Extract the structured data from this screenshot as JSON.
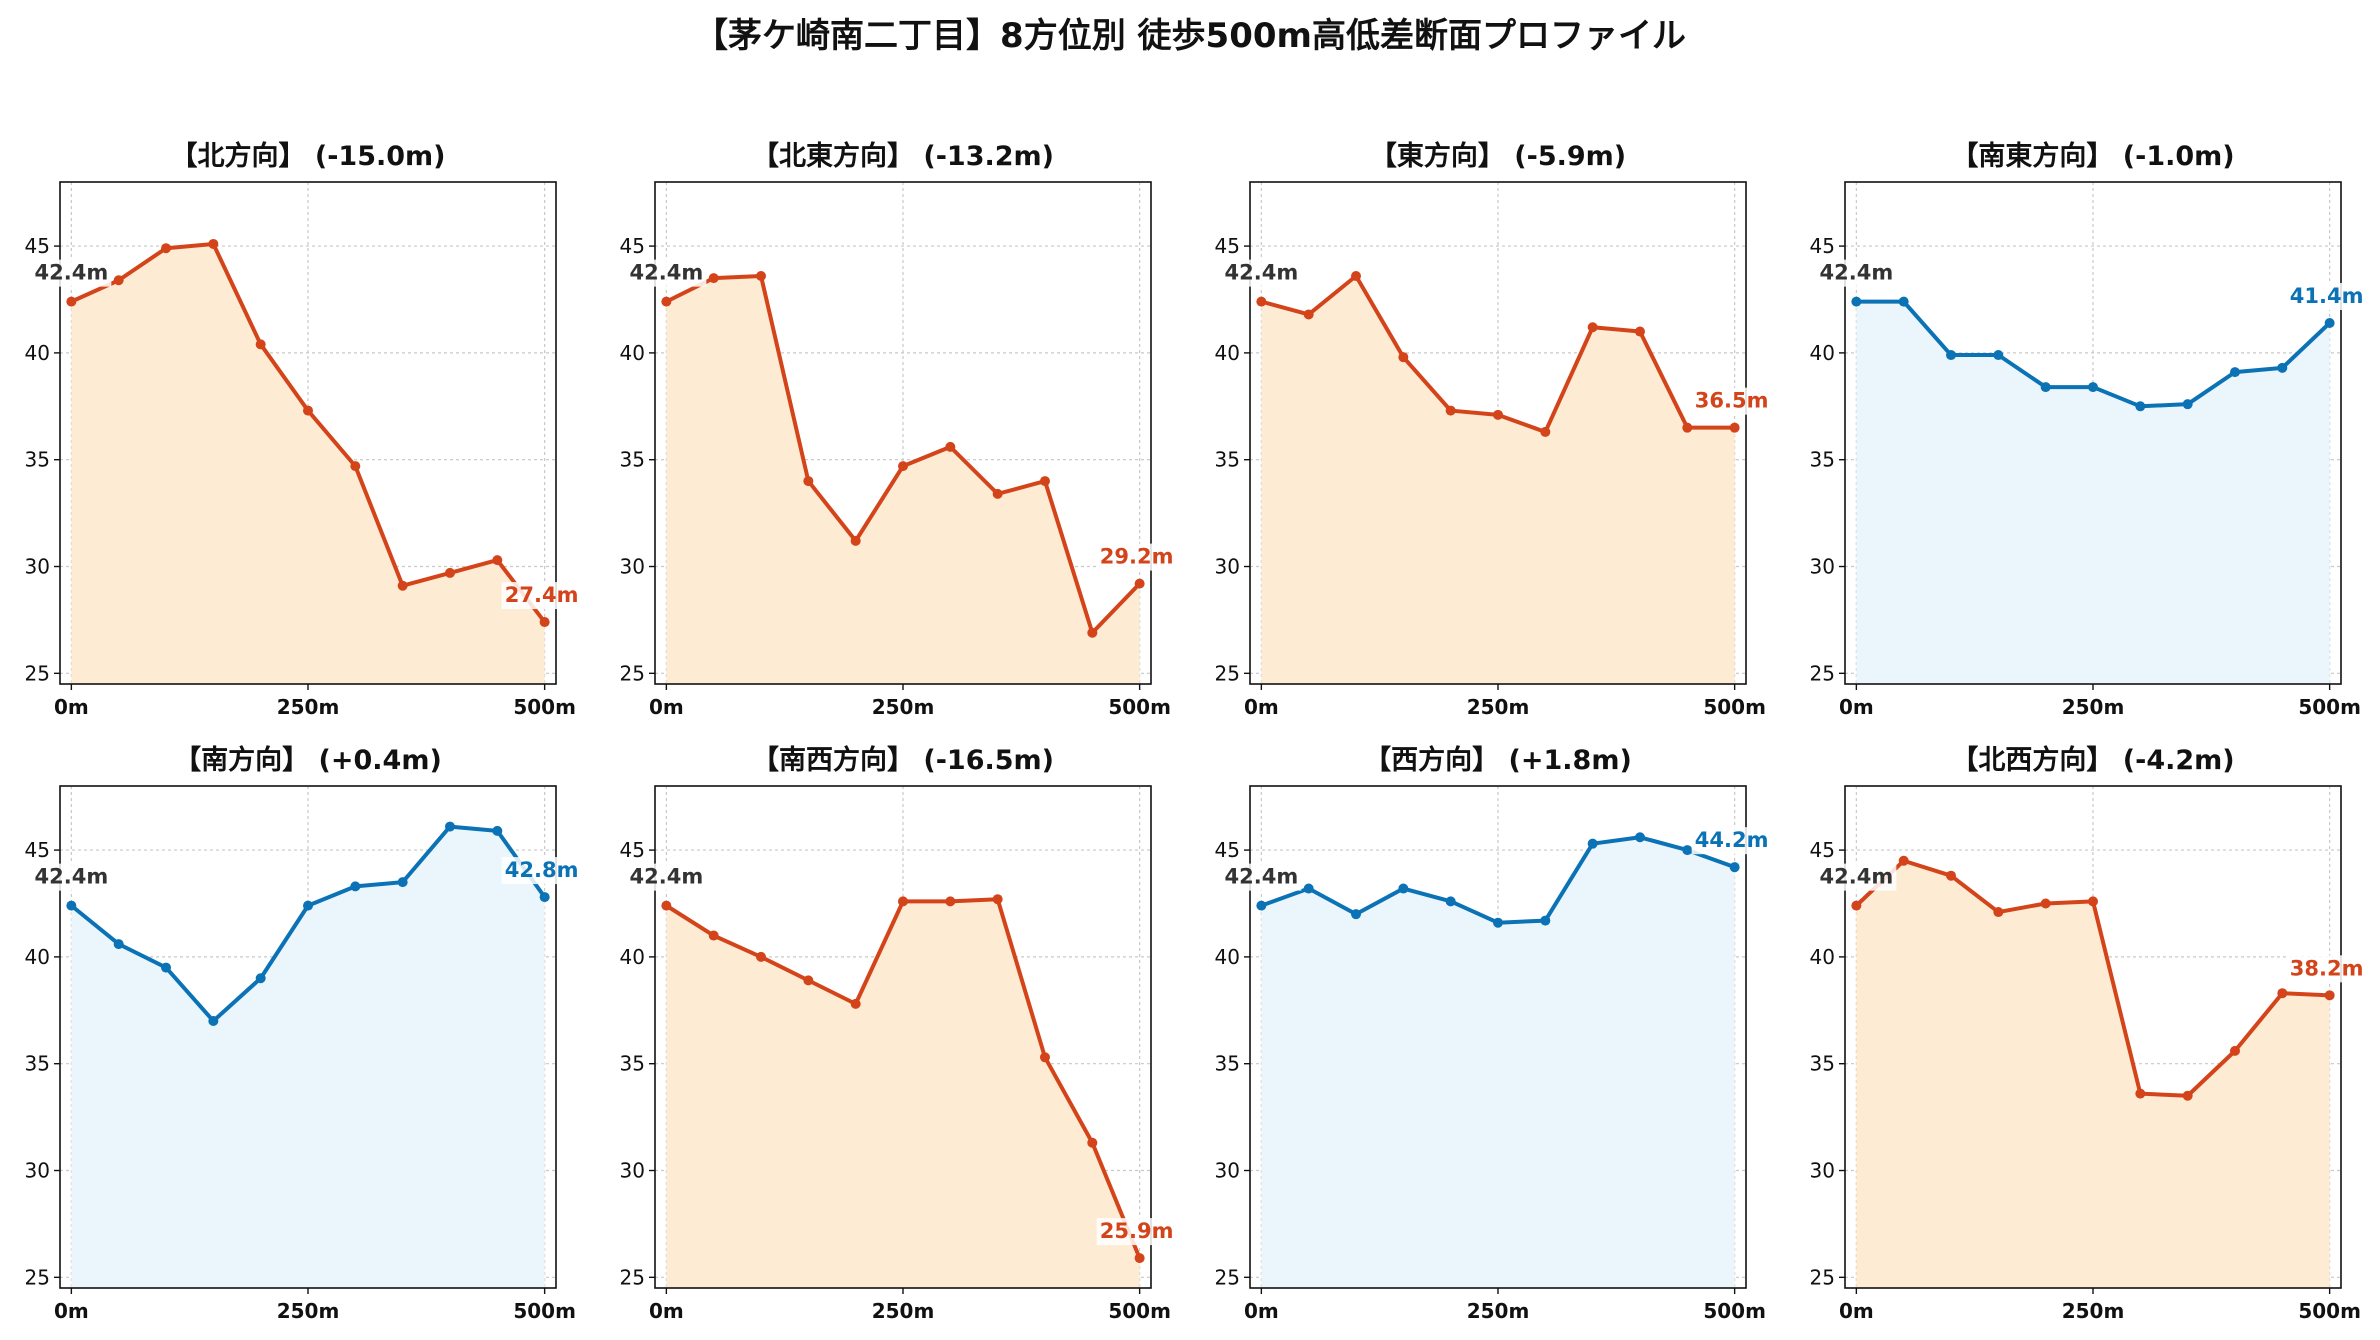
{
  "title": "【茅ケ崎南二丁目】8方位別 徒歩500m高低差断面プロファイル",
  "colors": {
    "down_line": "#d4441a",
    "down_fill": "#fdebd3",
    "up_line": "#0b72b6",
    "up_fill": "#eaf6fc",
    "start_label": "#333333",
    "grid": "#c8c8c8"
  },
  "chart_data": [
    {
      "type": "area",
      "title": "【北方向】 (-15.0m)",
      "trend": "down",
      "x": [
        0,
        50,
        100,
        150,
        200,
        250,
        300,
        350,
        400,
        450,
        500
      ],
      "y": [
        42.4,
        43.4,
        44.9,
        45.1,
        40.4,
        37.3,
        34.7,
        29.1,
        29.7,
        30.3,
        27.4
      ],
      "start_label": "42.4m",
      "end_label": "27.4m",
      "xticks": [
        "0m",
        "250m",
        "500m"
      ],
      "yticks": [
        "25",
        "30",
        "35",
        "40",
        "45"
      ],
      "xlim": [
        -12,
        512
      ],
      "ylim": [
        24.5,
        48
      ],
      "grid": true
    },
    {
      "type": "area",
      "title": "【北東方向】 (-13.2m)",
      "trend": "down",
      "x": [
        0,
        50,
        100,
        150,
        200,
        250,
        300,
        350,
        400,
        450,
        500
      ],
      "y": [
        42.4,
        43.5,
        43.6,
        34.0,
        31.2,
        34.7,
        35.6,
        33.4,
        34.0,
        26.9,
        29.2
      ],
      "start_label": "42.4m",
      "end_label": "29.2m",
      "xticks": [
        "0m",
        "250m",
        "500m"
      ],
      "yticks": [
        "25",
        "30",
        "35",
        "40",
        "45"
      ],
      "xlim": [
        -12,
        512
      ],
      "ylim": [
        24.5,
        48
      ],
      "grid": true
    },
    {
      "type": "area",
      "title": "【東方向】 (-5.9m)",
      "trend": "down",
      "x": [
        0,
        50,
        100,
        150,
        200,
        250,
        300,
        350,
        400,
        450,
        500
      ],
      "y": [
        42.4,
        41.8,
        43.6,
        39.8,
        37.3,
        37.1,
        36.3,
        41.2,
        41.0,
        36.5,
        36.5
      ],
      "start_label": "42.4m",
      "end_label": "36.5m",
      "xticks": [
        "0m",
        "250m",
        "500m"
      ],
      "yticks": [
        "25",
        "30",
        "35",
        "40",
        "45"
      ],
      "xlim": [
        -12,
        512
      ],
      "ylim": [
        24.5,
        48
      ],
      "grid": true
    },
    {
      "type": "area",
      "title": "【南東方向】 (-1.0m)",
      "trend": "up",
      "x": [
        0,
        50,
        100,
        150,
        200,
        250,
        300,
        350,
        400,
        450,
        500
      ],
      "y": [
        42.4,
        42.4,
        39.9,
        39.9,
        38.4,
        38.4,
        37.5,
        37.6,
        39.1,
        39.3,
        41.4
      ],
      "start_label": "42.4m",
      "end_label": "41.4m",
      "xticks": [
        "0m",
        "250m",
        "500m"
      ],
      "yticks": [
        "25",
        "30",
        "35",
        "40",
        "45"
      ],
      "xlim": [
        -12,
        512
      ],
      "ylim": [
        24.5,
        48
      ],
      "grid": true
    },
    {
      "type": "area",
      "title": "【南方向】 (+0.4m)",
      "trend": "up",
      "x": [
        0,
        50,
        100,
        150,
        200,
        250,
        300,
        350,
        400,
        450,
        500
      ],
      "y": [
        42.4,
        40.6,
        39.5,
        37.0,
        39.0,
        42.4,
        43.3,
        43.5,
        46.1,
        45.9,
        42.8
      ],
      "start_label": "42.4m",
      "end_label": "42.8m",
      "xticks": [
        "0m",
        "250m",
        "500m"
      ],
      "yticks": [
        "25",
        "30",
        "35",
        "40",
        "45"
      ],
      "xlim": [
        -12,
        512
      ],
      "ylim": [
        24.5,
        48
      ],
      "grid": true
    },
    {
      "type": "area",
      "title": "【南西方向】 (-16.5m)",
      "trend": "down",
      "x": [
        0,
        50,
        100,
        150,
        200,
        250,
        300,
        350,
        400,
        450,
        500
      ],
      "y": [
        42.4,
        41.0,
        40.0,
        38.9,
        37.8,
        42.6,
        42.6,
        42.7,
        35.3,
        31.3,
        25.9
      ],
      "start_label": "42.4m",
      "end_label": "25.9m",
      "xticks": [
        "0m",
        "250m",
        "500m"
      ],
      "yticks": [
        "25",
        "30",
        "35",
        "40",
        "45"
      ],
      "xlim": [
        -12,
        512
      ],
      "ylim": [
        24.5,
        48
      ],
      "grid": true
    },
    {
      "type": "area",
      "title": "【西方向】 (+1.8m)",
      "trend": "up",
      "x": [
        0,
        50,
        100,
        150,
        200,
        250,
        300,
        350,
        400,
        450,
        500
      ],
      "y": [
        42.4,
        43.2,
        42.0,
        43.2,
        42.6,
        41.6,
        41.7,
        45.3,
        45.6,
        45.0,
        44.2
      ],
      "start_label": "42.4m",
      "end_label": "44.2m",
      "xticks": [
        "0m",
        "250m",
        "500m"
      ],
      "yticks": [
        "25",
        "30",
        "35",
        "40",
        "45"
      ],
      "xlim": [
        -12,
        512
      ],
      "ylim": [
        24.5,
        48
      ],
      "grid": true
    },
    {
      "type": "area",
      "title": "【北西方向】 (-4.2m)",
      "trend": "down",
      "x": [
        0,
        50,
        100,
        150,
        200,
        250,
        300,
        350,
        400,
        450,
        500
      ],
      "y": [
        42.4,
        44.5,
        43.8,
        42.1,
        42.5,
        42.6,
        33.6,
        33.5,
        35.6,
        38.3,
        38.2
      ],
      "start_label": "42.4m",
      "end_label": "38.2m",
      "xticks": [
        "0m",
        "250m",
        "500m"
      ],
      "yticks": [
        "25",
        "30",
        "35",
        "40",
        "45"
      ],
      "xlim": [
        -12,
        512
      ],
      "ylim": [
        24.5,
        48
      ],
      "grid": true
    }
  ]
}
